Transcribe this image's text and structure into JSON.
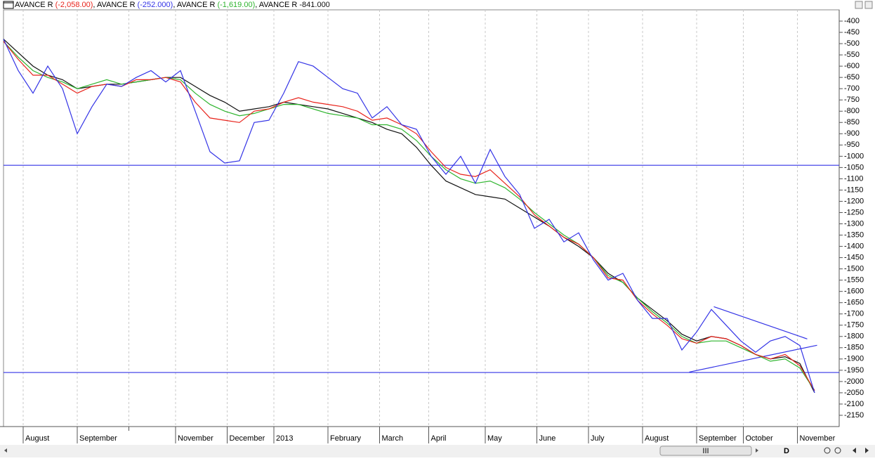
{
  "chart_data": {
    "type": "line",
    "separator": ", ",
    "x": [
      0,
      6,
      12,
      18,
      24,
      30,
      36,
      42,
      48,
      54,
      60,
      66,
      72,
      78,
      84,
      90,
      96,
      102,
      108,
      114,
      120,
      126,
      132,
      138,
      144,
      150,
      156,
      162,
      168,
      174,
      180,
      186,
      192,
      198,
      204,
      210,
      216,
      222,
      228,
      234,
      240,
      246,
      252,
      258,
      264,
      270,
      276,
      282,
      288,
      294,
      300,
      306,
      312,
      318,
      324,
      330
    ],
    "xlim": [
      0,
      340
    ],
    "xticks": [
      {
        "value": 8,
        "label": "August"
      },
      {
        "value": 30,
        "label": "September"
      },
      {
        "value": 51,
        "label": null
      },
      {
        "value": 70,
        "label": "November"
      },
      {
        "value": 91,
        "label": "December"
      },
      {
        "value": 110,
        "label": "2013"
      },
      {
        "value": 132,
        "label": "February"
      },
      {
        "value": 153,
        "label": "March"
      },
      {
        "value": 173,
        "label": "April"
      },
      {
        "value": 196,
        "label": "May"
      },
      {
        "value": 217,
        "label": "June"
      },
      {
        "value": 238,
        "label": "July"
      },
      {
        "value": 260,
        "label": "August"
      },
      {
        "value": 282,
        "label": "September"
      },
      {
        "value": 301,
        "label": "October"
      },
      {
        "value": 323,
        "label": "November"
      }
    ],
    "ylim": [
      -2200,
      -350
    ],
    "yticks": [
      -400,
      -450,
      -500,
      -550,
      -600,
      -650,
      -700,
      -750,
      -800,
      -850,
      -900,
      -950,
      -1000,
      -1050,
      -1100,
      -1150,
      -1200,
      -1250,
      -1300,
      -1350,
      -1400,
      -1450,
      -1500,
      -1550,
      -1600,
      -1650,
      -1700,
      -1750,
      -1800,
      -1850,
      -1900,
      -1950,
      -2000,
      -2050,
      -2100,
      -2150
    ],
    "grid": "x",
    "series": [
      {
        "name": "AVANCE R",
        "value_label": "(-2,058.00)",
        "color": "#e8231b",
        "values": [
          -490,
          -570,
          -640,
          -640,
          -680,
          -720,
          -690,
          -680,
          -690,
          -660,
          -660,
          -650,
          -670,
          -760,
          -830,
          -840,
          -850,
          -800,
          -790,
          -760,
          -740,
          -760,
          -770,
          -780,
          -800,
          -840,
          -830,
          -860,
          -900,
          -980,
          -1050,
          -1080,
          -1090,
          -1060,
          -1120,
          -1180,
          -1260,
          -1310,
          -1360,
          -1390,
          -1450,
          -1540,
          -1550,
          -1640,
          -1700,
          -1750,
          -1810,
          -1830,
          -1800,
          -1810,
          -1840,
          -1880,
          -1900,
          -1880,
          -1930,
          -2040
        ]
      },
      {
        "name": "AVANCE R",
        "value_label": "(-252.000)",
        "color": "#3333e6",
        "values": [
          -480,
          -620,
          -720,
          -600,
          -700,
          -900,
          -780,
          -680,
          -690,
          -650,
          -620,
          -670,
          -620,
          -800,
          -980,
          -1030,
          -1020,
          -850,
          -840,
          -720,
          -580,
          -600,
          -650,
          -700,
          -720,
          -830,
          -780,
          -860,
          -880,
          -1000,
          -1080,
          -1000,
          -1120,
          -970,
          -1090,
          -1170,
          -1320,
          -1280,
          -1380,
          -1340,
          -1460,
          -1550,
          -1520,
          -1640,
          -1720,
          -1720,
          -1860,
          -1780,
          -1680,
          -1750,
          -1820,
          -1870,
          -1820,
          -1800,
          -1840,
          -2050
        ]
      },
      {
        "name": "AVANCE R",
        "value_label": "(-1,619.00)",
        "color": "#2fb52f",
        "values": [
          -490,
          -560,
          -620,
          -650,
          -670,
          -700,
          -680,
          -660,
          -680,
          -670,
          -660,
          -650,
          -660,
          -720,
          -770,
          -800,
          -820,
          -810,
          -790,
          -770,
          -770,
          -790,
          -810,
          -820,
          -830,
          -860,
          -860,
          -880,
          -930,
          -1000,
          -1060,
          -1100,
          -1120,
          -1110,
          -1140,
          -1190,
          -1250,
          -1300,
          -1350,
          -1390,
          -1450,
          -1530,
          -1560,
          -1630,
          -1690,
          -1740,
          -1800,
          -1830,
          -1820,
          -1820,
          -1850,
          -1880,
          -1910,
          -1900,
          -1940,
          -2040
        ]
      },
      {
        "name": "AVANCE R",
        "value_label": "-841.000",
        "color": "#111111",
        "values": [
          -480,
          -540,
          -600,
          -640,
          -660,
          -700,
          -690,
          -680,
          -680,
          -670,
          -660,
          -650,
          -650,
          -690,
          -730,
          -760,
          -800,
          -790,
          -780,
          -760,
          -770,
          -780,
          -790,
          -810,
          -830,
          -850,
          -880,
          -900,
          -960,
          -1040,
          -1110,
          -1140,
          -1170,
          -1180,
          -1190,
          -1230,
          -1270,
          -1310,
          -1360,
          -1400,
          -1450,
          -1520,
          -1560,
          -1630,
          -1680,
          -1730,
          -1790,
          -1820,
          -1800,
          -1810,
          -1840,
          -1880,
          -1900,
          -1890,
          -1920,
          -2050
        ]
      }
    ],
    "hlines": {
      "color": "#3333e6",
      "values": [
        -1040,
        -1960
      ]
    },
    "trendlines": {
      "color": "#3333e6",
      "lines": [
        {
          "x": [
            289,
            327
          ],
          "values": [
            -1668,
            -1811
          ]
        },
        {
          "x": [
            279,
            331
          ],
          "values": [
            -1958,
            -1839
          ]
        }
      ]
    },
    "toolbar": {
      "period": "D",
      "scroll_grip": "III"
    }
  }
}
